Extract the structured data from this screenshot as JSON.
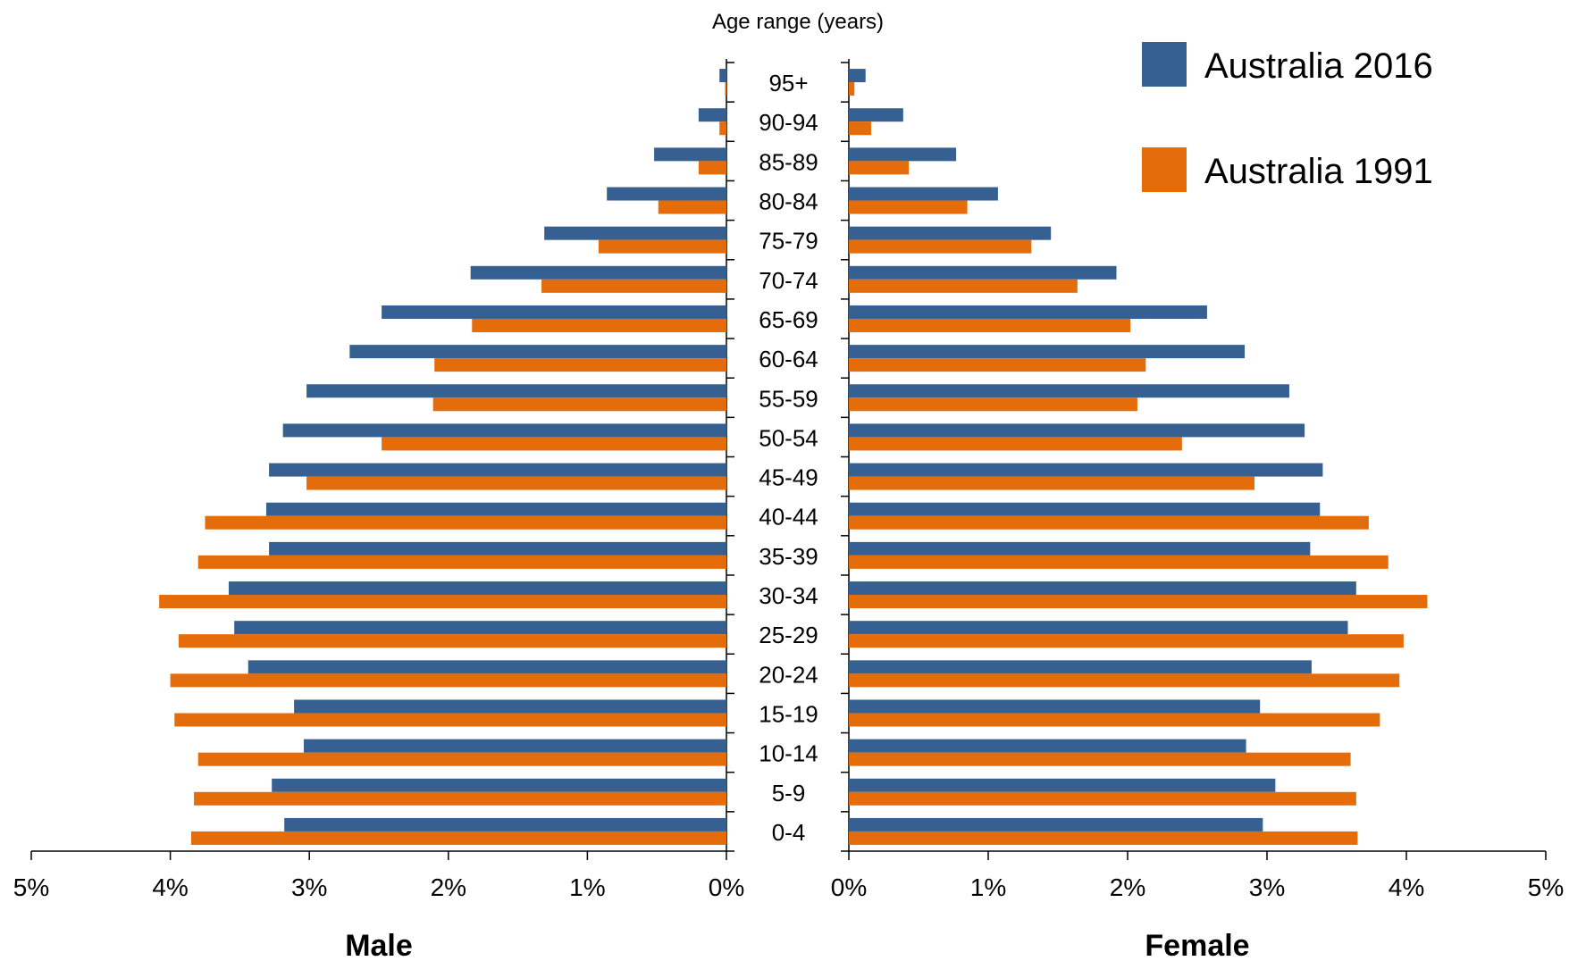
{
  "chart_data": {
    "type": "bar",
    "subtype": "population-pyramid",
    "title": "",
    "category_axis_label": "Age range (years)",
    "left_panel_label": "Male",
    "right_panel_label": "Female",
    "xlim": [
      0,
      5
    ],
    "x_ticks": [
      "0%",
      "1%",
      "2%",
      "3%",
      "4%",
      "5%"
    ],
    "categories": [
      "0-4",
      "5-9",
      "10-14",
      "15-19",
      "20-24",
      "25-29",
      "30-34",
      "35-39",
      "40-44",
      "45-49",
      "50-54",
      "55-59",
      "60-64",
      "65-69",
      "70-74",
      "75-79",
      "80-84",
      "85-89",
      "90-94",
      "95+"
    ],
    "series": [
      {
        "name": "Australia 2016",
        "color": "#376092",
        "male": [
          3.18,
          3.27,
          3.04,
          3.11,
          3.44,
          3.54,
          3.58,
          3.29,
          3.31,
          3.29,
          3.19,
          3.02,
          2.71,
          2.48,
          1.84,
          1.31,
          0.86,
          0.52,
          0.2,
          0.05
        ],
        "female": [
          2.97,
          3.06,
          2.85,
          2.95,
          3.32,
          3.58,
          3.64,
          3.31,
          3.38,
          3.4,
          3.27,
          3.16,
          2.84,
          2.57,
          1.92,
          1.45,
          1.07,
          0.77,
          0.39,
          0.12
        ]
      },
      {
        "name": "Australia 1991",
        "color": "#E46C0A",
        "male": [
          3.85,
          3.83,
          3.8,
          3.97,
          4.0,
          3.94,
          4.08,
          3.8,
          3.75,
          3.02,
          2.48,
          2.11,
          2.1,
          1.83,
          1.33,
          0.92,
          0.49,
          0.2,
          0.05,
          0.01
        ],
        "female": [
          3.65,
          3.64,
          3.6,
          3.81,
          3.95,
          3.98,
          4.15,
          3.87,
          3.73,
          2.91,
          2.39,
          2.07,
          2.13,
          2.02,
          1.64,
          1.31,
          0.85,
          0.43,
          0.16,
          0.04
        ]
      }
    ],
    "legend_position": "top-right",
    "grid": false
  }
}
